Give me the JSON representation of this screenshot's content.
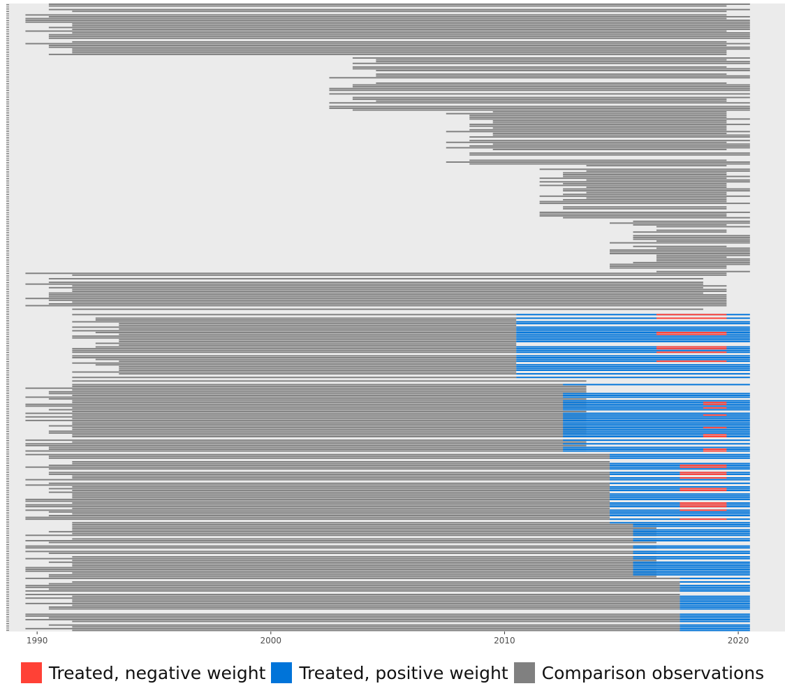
{
  "chart_data": {
    "type": "heatmap",
    "title": "",
    "xlabel": "",
    "ylabel": "",
    "xlim": [
      1988.8,
      2022.0
    ],
    "x_ticks": [
      1990,
      2000,
      2010,
      2020
    ],
    "x_tick_labels": [
      "1990",
      "2000",
      "2010",
      "2020"
    ],
    "y_tick_labels_shown": false,
    "grid": false,
    "legend_position": "bottom",
    "categories": [
      {
        "key": "neg",
        "label": "Treated, negative weight",
        "color": "#ff4136"
      },
      {
        "key": "pos",
        "label": "Treated, positive weight",
        "color": "#0074d9"
      },
      {
        "key": "comp",
        "label": "Comparison observations",
        "color": "#808080"
      }
    ],
    "background_color": "#ebebeb",
    "row_band_estimates": [
      {
        "rows_from_top": [
          1,
          30
        ],
        "comparison_years": [
          1990,
          2020
        ]
      },
      {
        "rows_from_top": [
          31,
          60
        ],
        "comparison_years": [
          2003,
          2020
        ]
      },
      {
        "rows_from_top": [
          61,
          90
        ],
        "comparison_years": [
          2008,
          2020
        ]
      },
      {
        "rows_from_top": [
          91,
          120
        ],
        "comparison_years": [
          2012,
          2020
        ]
      },
      {
        "rows_from_top": [
          121,
          150
        ],
        "comparison_years": [
          2015,
          2020
        ]
      },
      {
        "rows_from_top": [
          151,
          172
        ],
        "comparison_years": [
          1990,
          2019
        ]
      },
      {
        "rows_from_top": [
          173,
          210
        ],
        "comparison_years": [
          1992,
          2010
        ],
        "positive_years": [
          2011,
          2020
        ],
        "negative_years": [
          2017,
          2019
        ]
      },
      {
        "rows_from_top": [
          211,
          250
        ],
        "comparison_years": [
          1990,
          2013
        ],
        "positive_years": [
          2013,
          2020
        ],
        "negative_years": [
          2019,
          2019
        ]
      },
      {
        "rows_from_top": [
          251,
          290
        ],
        "comparison_years": [
          1990,
          2014
        ],
        "positive_years": [
          2015,
          2020
        ],
        "negative_years": [
          2018,
          2019
        ]
      },
      {
        "rows_from_top": [
          291,
          320
        ],
        "comparison_years": [
          1990,
          2016
        ],
        "positive_years": [
          2016,
          2020
        ]
      },
      {
        "rows_from_top": [
          321,
          350
        ],
        "comparison_years": [
          1990,
          2017
        ],
        "positive_years": [
          2018,
          2020
        ]
      }
    ]
  }
}
